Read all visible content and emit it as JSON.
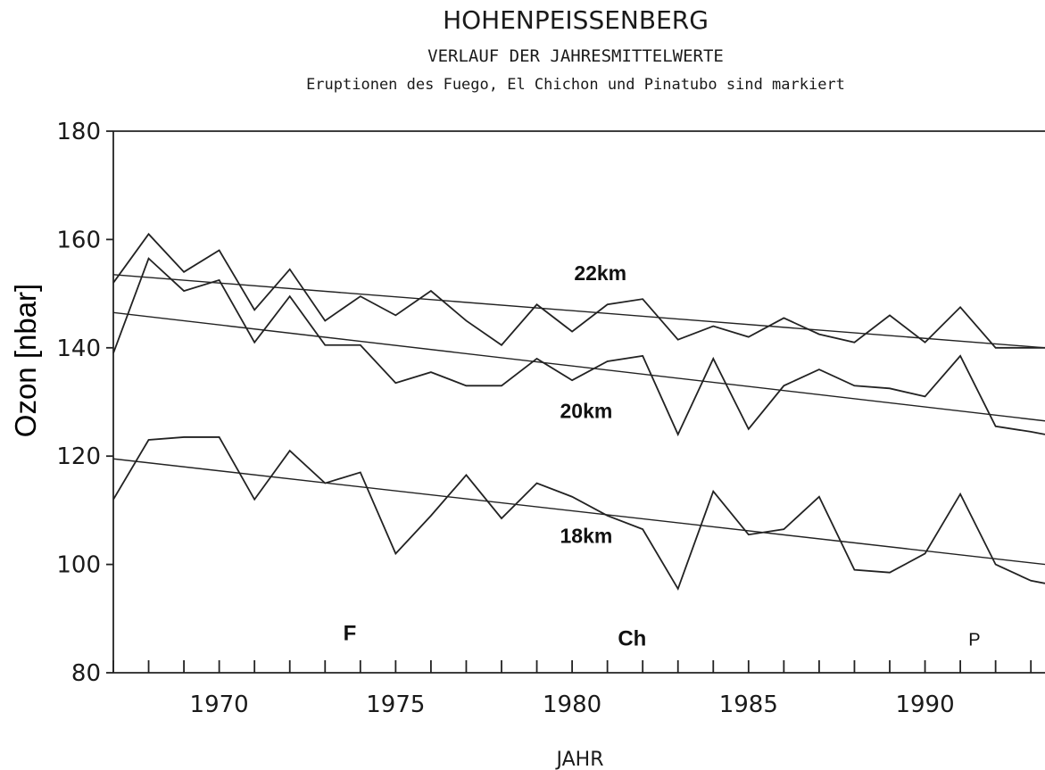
{
  "chart_data": {
    "type": "line",
    "title": "HOHENPEISSENBERG",
    "subtitle": "VERLAUF DER JAHRESMITTELWERTE",
    "subtitle2": "Eruptionen des Fuego, El Chichon und Pinatubo sind markiert",
    "xlabel": "JAHR",
    "ylabel": "Ozon [nbar]",
    "xlim": [
      1967,
      1993.4
    ],
    "ylim": [
      80,
      180
    ],
    "x_ticks": [
      1970,
      1975,
      1980,
      1985,
      1990
    ],
    "y_ticks": [
      80,
      100,
      120,
      140,
      160,
      180
    ],
    "grid": false,
    "x": [
      1967,
      1968,
      1969,
      1970,
      1971,
      1972,
      1973,
      1974,
      1975,
      1976,
      1977,
      1978,
      1979,
      1980,
      1981,
      1982,
      1983,
      1984,
      1985,
      1986,
      1987,
      1988,
      1989,
      1990,
      1991,
      1992,
      1993,
      1993.4
    ],
    "series": [
      {
        "name": "22km",
        "values": [
          152,
          161,
          154,
          158,
          147,
          154.5,
          145,
          149.5,
          146,
          150.5,
          145,
          140.5,
          148,
          143,
          148,
          149,
          141.5,
          144,
          142,
          145.5,
          142.5,
          141,
          146,
          141,
          147.5,
          140,
          140,
          140
        ],
        "trend": [
          153.5,
          140
        ]
      },
      {
        "name": "20km",
        "values": [
          139,
          156.5,
          150.5,
          152.5,
          141,
          149.5,
          140.5,
          140.5,
          133.5,
          135.5,
          133,
          133,
          138,
          134,
          137.5,
          138.5,
          124,
          138,
          125,
          133,
          136,
          133,
          132.5,
          131,
          138.5,
          125.5,
          124.5,
          124
        ],
        "trend": [
          146.5,
          126.5
        ]
      },
      {
        "name": "18km",
        "values": [
          112,
          123,
          123.5,
          123.5,
          112,
          121,
          115,
          117,
          102,
          109,
          116.5,
          108.5,
          115,
          112.5,
          109,
          106.5,
          95.5,
          113.5,
          105.5,
          106.5,
          112.5,
          99,
          98.5,
          102,
          113,
          100,
          97,
          96.5
        ],
        "trend": [
          119.5,
          100
        ]
      }
    ],
    "annotations": [
      {
        "label": "F",
        "x": 1973.7,
        "y": 86
      },
      {
        "label": "Ch",
        "x": 1981.7,
        "y": 85
      },
      {
        "label": "P",
        "x": 1991.4,
        "y": 85
      }
    ]
  }
}
